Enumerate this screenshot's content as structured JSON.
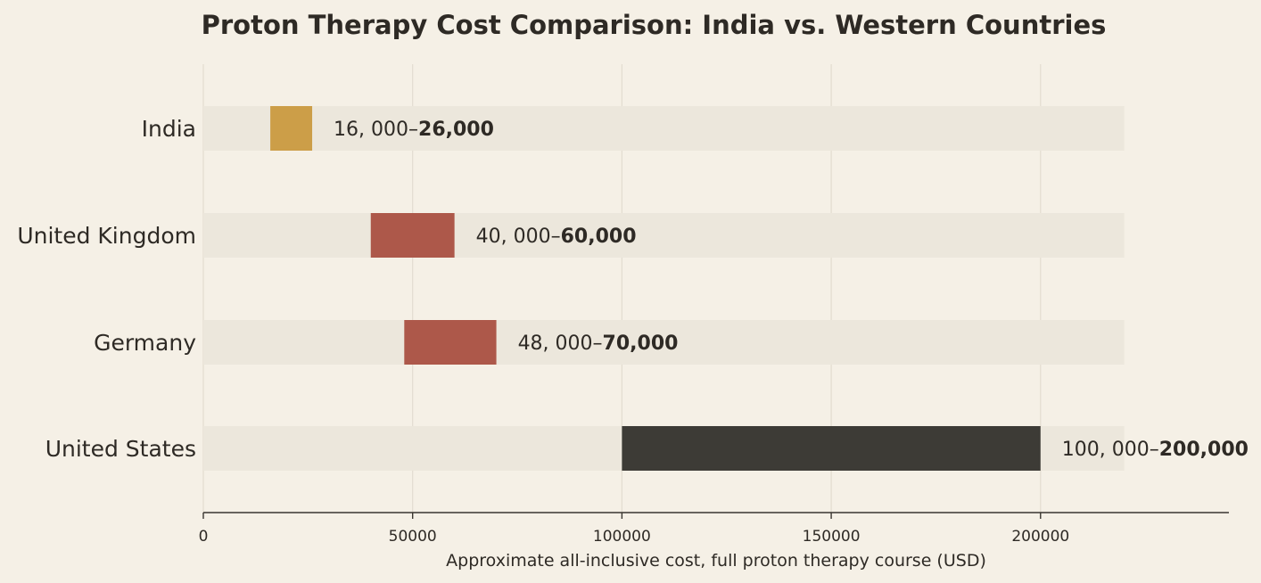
{
  "chart_data": {
    "type": "bar",
    "title": "Proton Therapy Cost Comparison: India vs. Western Countries",
    "xlabel": "Approximate all-inclusive cost, full proton therapy course (USD)",
    "ylabel": "",
    "xlim": [
      0,
      245000
    ],
    "background_band_max": 220000,
    "xticks": [
      0,
      50000,
      100000,
      150000,
      200000
    ],
    "xtick_labels": [
      "0",
      "50000",
      "100000",
      "150000",
      "200000"
    ],
    "grid": true,
    "categories": [
      "India",
      "United Kingdom",
      "Germany",
      "United States"
    ],
    "ranges": [
      {
        "category": "India",
        "low": 16000,
        "high": 26000,
        "low_label": "16, 000–",
        "high_label": "26,000",
        "color": "#cc9e48"
      },
      {
        "category": "United Kingdom",
        "low": 40000,
        "high": 60000,
        "low_label": "40, 000–",
        "high_label": "60,000",
        "color": "#ad584a"
      },
      {
        "category": "Germany",
        "low": 48000,
        "high": 70000,
        "low_label": "48, 000–",
        "high_label": "70,000",
        "color": "#ad584a"
      },
      {
        "category": "United States",
        "low": 100000,
        "high": 200000,
        "low_label": "100, 000–",
        "high_label": "200,000",
        "color": "#3d3b36"
      }
    ]
  }
}
